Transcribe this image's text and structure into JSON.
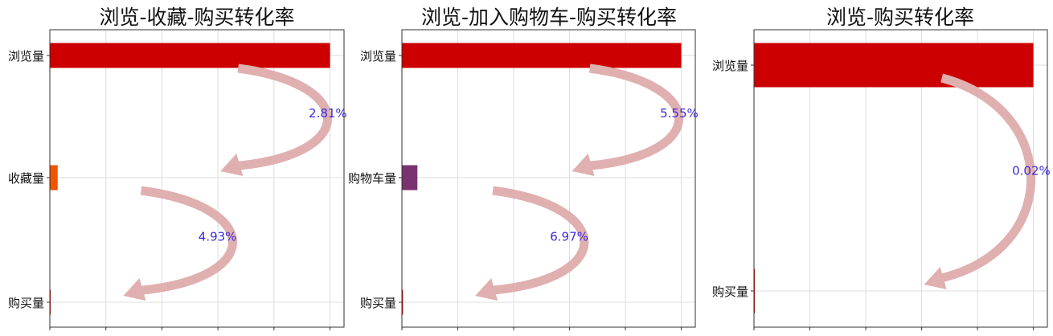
{
  "chart_data": [
    {
      "type": "bar",
      "orientation": "horizontal",
      "title": "浏览-收藏-购买转化率",
      "categories": [
        "浏览量",
        "收藏量",
        "购买量"
      ],
      "values": [
        1000,
        28,
        1.4
      ],
      "xlim": [
        0,
        1050
      ],
      "grid": true,
      "bar_colors": [
        "#cc0000",
        "#ee5500",
        "#cc0000"
      ],
      "arrow_color": "#e0b0b0",
      "rate_color": "#3a2bd9",
      "conversions": [
        {
          "from": 0,
          "to": 1,
          "label": "2.81%"
        },
        {
          "from": 1,
          "to": 2,
          "label": "4.93%"
        }
      ]
    },
    {
      "type": "bar",
      "orientation": "horizontal",
      "title": "浏览-加入购物车-购买转化率",
      "categories": [
        "浏览量",
        "购物车量",
        "购买量"
      ],
      "values": [
        1000,
        55.5,
        3.9
      ],
      "xlim": [
        0,
        1050
      ],
      "grid": true,
      "bar_colors": [
        "#cc0000",
        "#7a3370",
        "#cc0000"
      ],
      "arrow_color": "#e0b0b0",
      "rate_color": "#3a2bd9",
      "conversions": [
        {
          "from": 0,
          "to": 1,
          "label": "5.55%"
        },
        {
          "from": 1,
          "to": 2,
          "label": "6.97%"
        }
      ]
    },
    {
      "type": "bar",
      "orientation": "horizontal",
      "title": "浏览-购买转化率",
      "categories": [
        "浏览量",
        "购买量"
      ],
      "values": [
        1000,
        0.2
      ],
      "xlim": [
        0,
        1050
      ],
      "grid": true,
      "bar_colors": [
        "#cc0000",
        "#cc0000"
      ],
      "arrow_color": "#e0b0b0",
      "rate_color": "#3a2bd9",
      "conversions": [
        {
          "from": 0,
          "to": 1,
          "label": "0.02%"
        }
      ]
    }
  ]
}
